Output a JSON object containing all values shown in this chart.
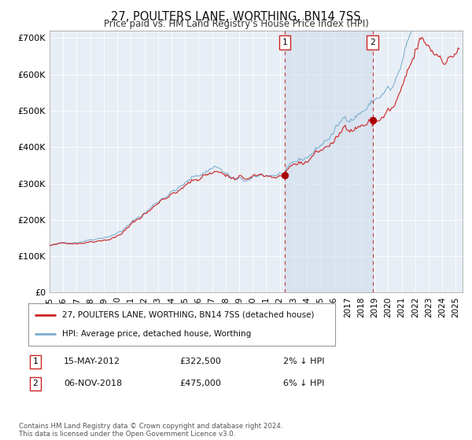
{
  "title": "27, POULTERS LANE, WORTHING, BN14 7SS",
  "subtitle": "Price paid vs. HM Land Registry's House Price Index (HPI)",
  "background_color": "#ffffff",
  "plot_bg_color": "#e8eef5",
  "grid_color": "#ffffff",
  "hpi_color": "#7aadcf",
  "price_color": "#cc2222",
  "shade_color": "#ccdaeb",
  "legend_line1": "27, POULTERS LANE, WORTHING, BN14 7SS (detached house)",
  "legend_line2": "HPI: Average price, detached house, Worthing",
  "note1_label": "1",
  "note1_date": "15-MAY-2012",
  "note1_price": "£322,500",
  "note1_hpi": "2% ↓ HPI",
  "note2_label": "2",
  "note2_date": "06-NOV-2018",
  "note2_price": "£475,000",
  "note2_hpi": "6% ↓ HPI",
  "footer": "Contains HM Land Registry data © Crown copyright and database right 2024.\nThis data is licensed under the Open Government Licence v3.0.",
  "ylim_max": 720000,
  "purchase1_date": "2012-05-15",
  "purchase1_price": 322500,
  "purchase2_date": "2018-11-06",
  "purchase2_price": 475000
}
